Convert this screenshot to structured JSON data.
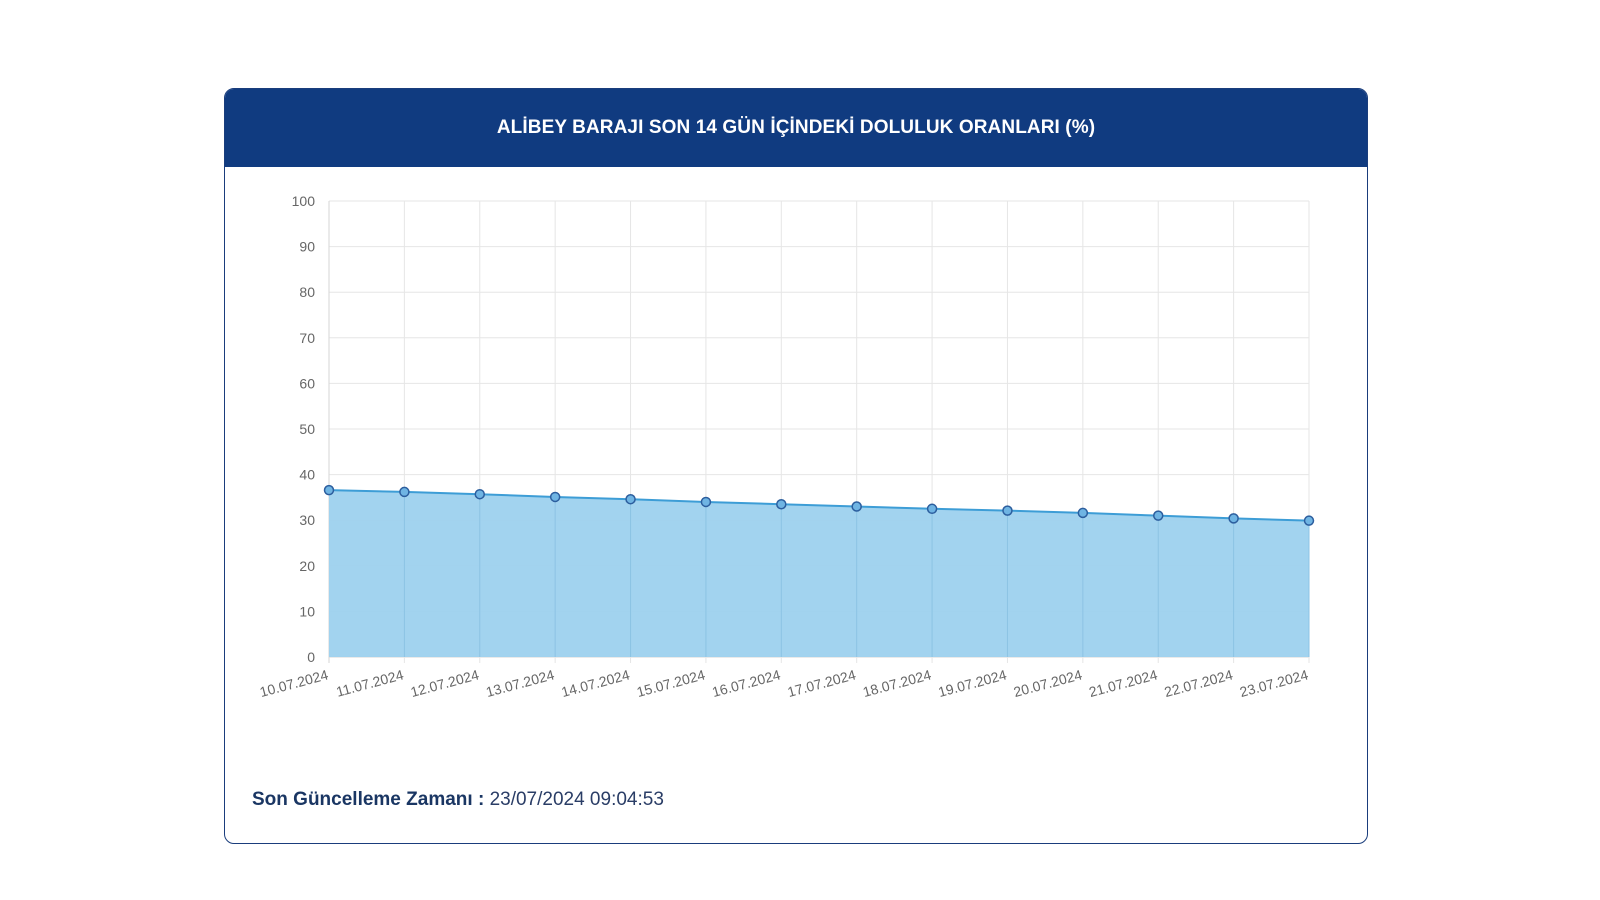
{
  "header": {
    "title": "ALİBEY BARAJI SON 14 GÜN İÇİNDEKİ DOLULUK ORANLARI (%)"
  },
  "footer": {
    "label": "Son Güncelleme Zamanı :",
    "value": "23/07/2024 09:04:53"
  },
  "colors": {
    "header_bg": "#103b80",
    "area_fill": "#9dd1ee",
    "line": "#3d9dd6",
    "point_fill": "#6fb4e3",
    "point_stroke": "#2c5e9e"
  },
  "chart_data": {
    "type": "area",
    "title": "ALİBEY BARAJI SON 14 GÜN İÇİNDEKİ DOLULUK ORANLARI (%)",
    "xlabel": "",
    "ylabel": "",
    "ylim": [
      0,
      100
    ],
    "yticks": [
      0,
      10,
      20,
      30,
      40,
      50,
      60,
      70,
      80,
      90,
      100
    ],
    "grid": true,
    "categories": [
      "10.07.2024",
      "11.07.2024",
      "12.07.2024",
      "13.07.2024",
      "14.07.2024",
      "15.07.2024",
      "16.07.2024",
      "17.07.2024",
      "18.07.2024",
      "19.07.2024",
      "20.07.2024",
      "21.07.2024",
      "22.07.2024",
      "23.07.2024"
    ],
    "series": [
      {
        "values": [
          36.6,
          36.2,
          35.7,
          35.1,
          34.6,
          34.0,
          33.5,
          33.0,
          32.5,
          32.1,
          31.6,
          31.0,
          30.4,
          29.9
        ]
      }
    ]
  }
}
